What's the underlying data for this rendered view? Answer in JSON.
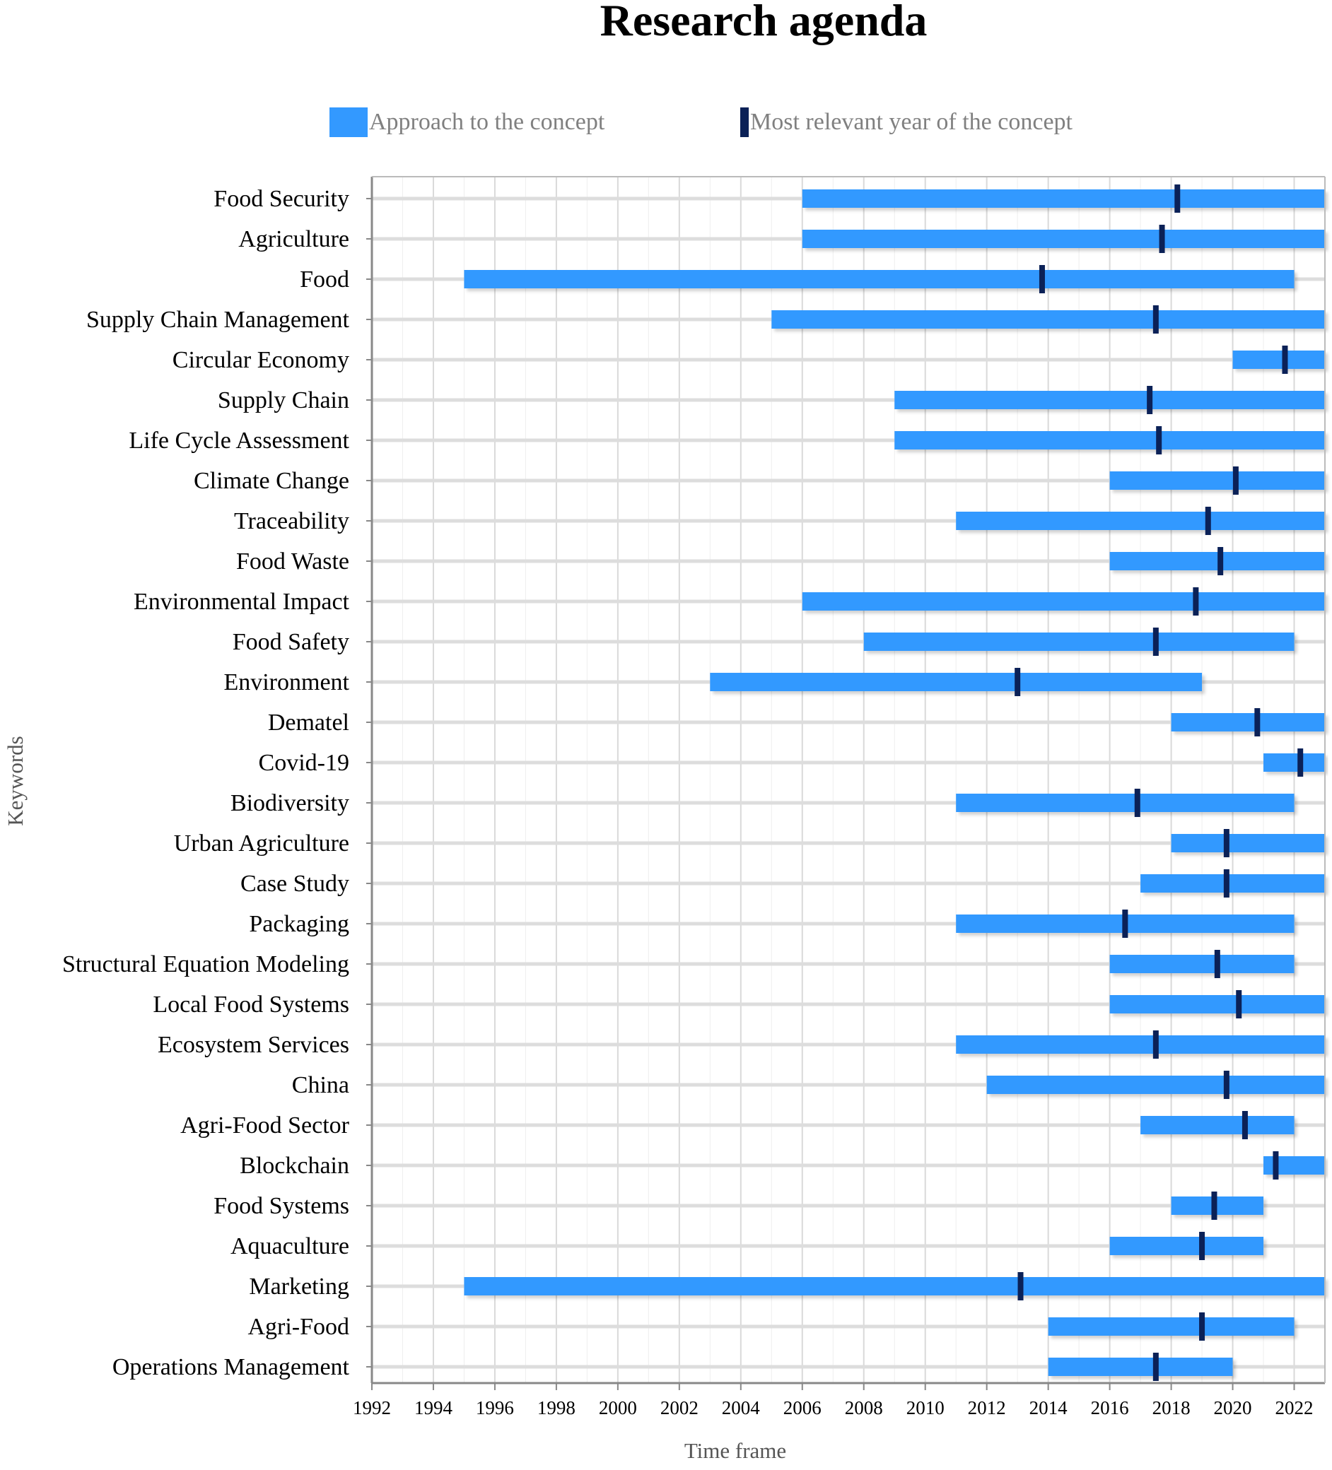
{
  "chart_data": {
    "type": "gantt",
    "title": "Research agenda",
    "xlabel": "Time frame",
    "ylabel": "Keywords",
    "xlim": [
      1992,
      2023
    ],
    "xticks": [
      1992,
      1994,
      1996,
      1998,
      2000,
      2002,
      2004,
      2006,
      2008,
      2010,
      2012,
      2014,
      2016,
      2018,
      2020,
      2022
    ],
    "grid": true,
    "legend": {
      "position": "top",
      "span_label": "Approach to the concept",
      "peak_label": "Most relevant year of the concept"
    },
    "colors": {
      "span": "#3399ff",
      "peak": "#0b2157",
      "grid": "#d9d9d9",
      "axis": "#888888"
    },
    "series": [
      {
        "keyword": "Food Security",
        "start": 2006,
        "end": 2023,
        "peak": 2018.2
      },
      {
        "keyword": "Agriculture",
        "start": 2006,
        "end": 2023,
        "peak": 2017.7
      },
      {
        "keyword": "Food",
        "start": 1995,
        "end": 2022,
        "peak": 2013.8
      },
      {
        "keyword": "Supply Chain Management",
        "start": 2005,
        "end": 2023,
        "peak": 2017.5
      },
      {
        "keyword": "Circular Economy",
        "start": 2020,
        "end": 2023,
        "peak": 2021.7
      },
      {
        "keyword": "Supply Chain",
        "start": 2009,
        "end": 2023,
        "peak": 2017.3
      },
      {
        "keyword": "Life Cycle Assessment",
        "start": 2009,
        "end": 2023,
        "peak": 2017.6
      },
      {
        "keyword": "Climate Change",
        "start": 2016,
        "end": 2023,
        "peak": 2020.1
      },
      {
        "keyword": "Traceability",
        "start": 2011,
        "end": 2023,
        "peak": 2019.2
      },
      {
        "keyword": "Food Waste",
        "start": 2016,
        "end": 2023,
        "peak": 2019.6
      },
      {
        "keyword": "Environmental Impact",
        "start": 2006,
        "end": 2023,
        "peak": 2018.8
      },
      {
        "keyword": "Food Safety",
        "start": 2008,
        "end": 2022,
        "peak": 2017.5
      },
      {
        "keyword": "Environment",
        "start": 2003,
        "end": 2019,
        "peak": 2013.0
      },
      {
        "keyword": "Dematel",
        "start": 2018,
        "end": 2023,
        "peak": 2020.8
      },
      {
        "keyword": "Covid-19",
        "start": 2021,
        "end": 2023,
        "peak": 2022.2
      },
      {
        "keyword": "Biodiversity",
        "start": 2011,
        "end": 2022,
        "peak": 2016.9
      },
      {
        "keyword": "Urban Agriculture",
        "start": 2018,
        "end": 2023,
        "peak": 2019.8
      },
      {
        "keyword": "Case Study",
        "start": 2017,
        "end": 2023,
        "peak": 2019.8
      },
      {
        "keyword": "Packaging",
        "start": 2011,
        "end": 2022,
        "peak": 2016.5
      },
      {
        "keyword": "Structural Equation Modeling",
        "start": 2016,
        "end": 2022,
        "peak": 2019.5
      },
      {
        "keyword": "Local Food Systems",
        "start": 2016,
        "end": 2023,
        "peak": 2020.2
      },
      {
        "keyword": "Ecosystem Services",
        "start": 2011,
        "end": 2023,
        "peak": 2017.5
      },
      {
        "keyword": "China",
        "start": 2012,
        "end": 2023,
        "peak": 2019.8
      },
      {
        "keyword": "Agri-Food Sector",
        "start": 2017,
        "end": 2022,
        "peak": 2020.4
      },
      {
        "keyword": "Blockchain",
        "start": 2021,
        "end": 2023,
        "peak": 2021.4
      },
      {
        "keyword": "Food Systems",
        "start": 2018,
        "end": 2021,
        "peak": 2019.4
      },
      {
        "keyword": "Aquaculture",
        "start": 2016,
        "end": 2021,
        "peak": 2019.0
      },
      {
        "keyword": "Marketing",
        "start": 1995,
        "end": 2023,
        "peak": 2013.1
      },
      {
        "keyword": "Agri-Food",
        "start": 2014,
        "end": 2022,
        "peak": 2019.0
      },
      {
        "keyword": "Operations Management",
        "start": 2014,
        "end": 2020,
        "peak": 2017.5
      }
    ]
  }
}
